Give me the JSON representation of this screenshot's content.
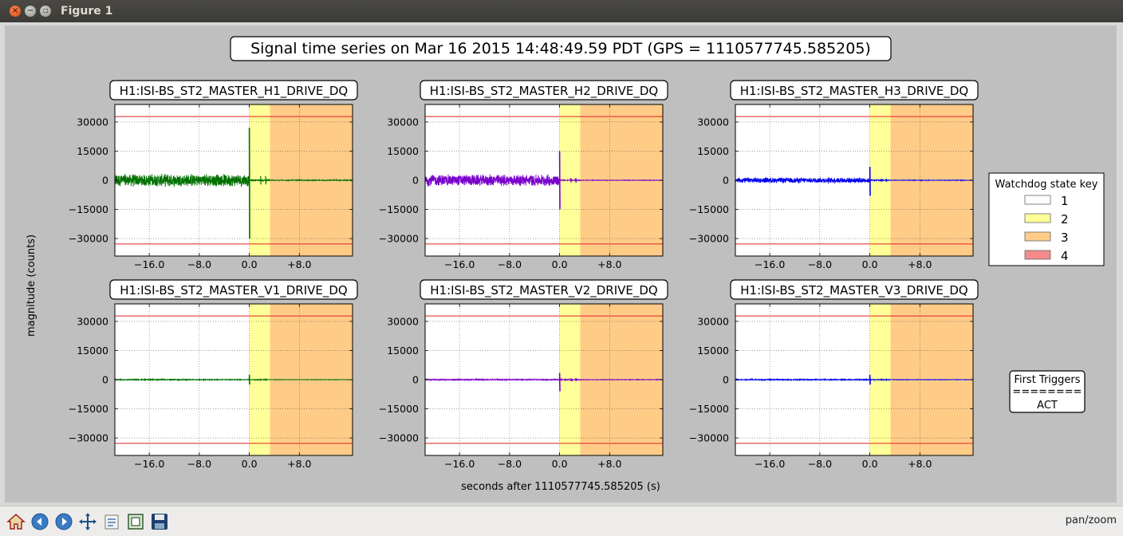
{
  "window": {
    "title": "Figure 1"
  },
  "figure": {
    "suptitle": "Signal time series on Mar 16 2015 14:48:49.59 PDT (GPS = 1110577745.585205)",
    "ylabel": "magnitude (counts)",
    "xlabel": "seconds after 1110577745.585205 (s)"
  },
  "legend": {
    "title": "Watchdog state key",
    "entries": [
      {
        "label": "1",
        "color": "#ffffff"
      },
      {
        "label": "2",
        "color": "#ffff99"
      },
      {
        "label": "3",
        "color": "#ffcc88"
      },
      {
        "label": "4",
        "color": "#f48a8a"
      }
    ]
  },
  "first_triggers": {
    "title": "First Triggers",
    "separator": "========",
    "value": "ACT"
  },
  "toolbar": {
    "buttons": [
      "home-icon",
      "back-icon",
      "forward-icon",
      "pan-icon",
      "configure-subplots-icon",
      "zoom-icon",
      "save-icon"
    ],
    "status": "pan/zoom"
  },
  "chart_data": [
    {
      "type": "line",
      "title": "H1:ISI-BS_ST2_MASTER_H1_DRIVE_DQ",
      "color": "#007000",
      "xlim": [
        -21.5,
        16.5
      ],
      "ylim": [
        -39000,
        39000
      ],
      "xticks": [
        -16.0,
        -8.0,
        0.0,
        8.0
      ],
      "xticklabels": [
        "−16.0",
        "−8.0",
        "0.0",
        "+8.0"
      ],
      "yticks": [
        30000,
        15000,
        0,
        -15000,
        -30000
      ],
      "yticklabels": [
        "30000",
        "15000",
        "0",
        "−15000",
        "−30000"
      ],
      "thresholds": [
        32767,
        -32767
      ],
      "state_spans": [
        {
          "state": 2,
          "from": 0.0,
          "to": 3.3
        },
        {
          "state": 3,
          "from": 3.3,
          "to": 16.5
        }
      ],
      "pre_amplitude": 3500,
      "spike_max": 27000,
      "spike_min": -30000,
      "post_amplitude": 300
    },
    {
      "type": "line",
      "title": "H1:ISI-BS_ST2_MASTER_H2_DRIVE_DQ",
      "color": "#7a00cc",
      "xlim": [
        -21.5,
        16.5
      ],
      "ylim": [
        -39000,
        39000
      ],
      "xticks": [
        -16.0,
        -8.0,
        0.0,
        8.0
      ],
      "xticklabels": [
        "−16.0",
        "−8.0",
        "0.0",
        "+8.0"
      ],
      "yticks": [
        30000,
        15000,
        0,
        -15000,
        -30000
      ],
      "yticklabels": [
        "30000",
        "15000",
        "0",
        "−15000",
        "−30000"
      ],
      "thresholds": [
        32767,
        -32767
      ],
      "state_spans": [
        {
          "state": 2,
          "from": 0.0,
          "to": 3.3
        },
        {
          "state": 3,
          "from": 3.3,
          "to": 16.5
        }
      ],
      "pre_amplitude": 3200,
      "spike_max": 15000,
      "spike_min": -15000,
      "post_amplitude": 200
    },
    {
      "type": "line",
      "title": "H1:ISI-BS_ST2_MASTER_H3_DRIVE_DQ",
      "color": "#0000ee",
      "xlim": [
        -21.5,
        16.5
      ],
      "ylim": [
        -39000,
        39000
      ],
      "xticks": [
        -16.0,
        -8.0,
        0.0,
        8.0
      ],
      "xticklabels": [
        "−16.0",
        "−8.0",
        "0.0",
        "+8.0"
      ],
      "yticks": [
        30000,
        15000,
        0,
        -15000,
        -30000
      ],
      "yticklabels": [
        "30000",
        "15000",
        "0",
        "−15000",
        "−30000"
      ],
      "thresholds": [
        32767,
        -32767
      ],
      "state_spans": [
        {
          "state": 2,
          "from": 0.0,
          "to": 3.3
        },
        {
          "state": 3,
          "from": 3.3,
          "to": 16.5
        }
      ],
      "pre_amplitude": 1500,
      "spike_max": 7000,
      "spike_min": -8000,
      "post_amplitude": 200
    },
    {
      "type": "line",
      "title": "H1:ISI-BS_ST2_MASTER_V1_DRIVE_DQ",
      "color": "#007000",
      "xlim": [
        -21.5,
        16.5
      ],
      "ylim": [
        -39000,
        39000
      ],
      "xticks": [
        -16.0,
        -8.0,
        0.0,
        8.0
      ],
      "xticklabels": [
        "−16.0",
        "−8.0",
        "0.0",
        "+8.0"
      ],
      "yticks": [
        30000,
        15000,
        0,
        -15000,
        -30000
      ],
      "yticklabels": [
        "30000",
        "15000",
        "0",
        "−15000",
        "−30000"
      ],
      "thresholds": [
        32767,
        -32767
      ],
      "state_spans": [
        {
          "state": 2,
          "from": 0.0,
          "to": 3.3
        },
        {
          "state": 3,
          "from": 3.3,
          "to": 16.5
        }
      ],
      "pre_amplitude": 250,
      "spike_max": 2500,
      "spike_min": -2500,
      "post_amplitude": 150
    },
    {
      "type": "line",
      "title": "H1:ISI-BS_ST2_MASTER_V2_DRIVE_DQ",
      "color": "#7a00cc",
      "xlim": [
        -21.5,
        16.5
      ],
      "ylim": [
        -39000,
        39000
      ],
      "xticks": [
        -16.0,
        -8.0,
        0.0,
        8.0
      ],
      "xticklabels": [
        "−16.0",
        "−8.0",
        "0.0",
        "+8.0"
      ],
      "yticks": [
        30000,
        15000,
        0,
        -15000,
        -30000
      ],
      "yticklabels": [
        "30000",
        "15000",
        "0",
        "−15000",
        "−30000"
      ],
      "thresholds": [
        32767,
        -32767
      ],
      "state_spans": [
        {
          "state": 2,
          "from": 0.0,
          "to": 3.3
        },
        {
          "state": 3,
          "from": 3.3,
          "to": 16.5
        }
      ],
      "pre_amplitude": 300,
      "spike_max": 3500,
      "spike_min": -6000,
      "post_amplitude": 200
    },
    {
      "type": "line",
      "title": "H1:ISI-BS_ST2_MASTER_V3_DRIVE_DQ",
      "color": "#0000ee",
      "xlim": [
        -21.5,
        16.5
      ],
      "ylim": [
        -39000,
        39000
      ],
      "xticks": [
        -16.0,
        -8.0,
        0.0,
        8.0
      ],
      "xticklabels": [
        "−16.0",
        "−8.0",
        "0.0",
        "+8.0"
      ],
      "yticks": [
        30000,
        15000,
        0,
        -15000,
        -30000
      ],
      "yticklabels": [
        "30000",
        "15000",
        "0",
        "−15000",
        "−30000"
      ],
      "thresholds": [
        32767,
        -32767
      ],
      "state_spans": [
        {
          "state": 2,
          "from": 0.0,
          "to": 3.3
        },
        {
          "state": 3,
          "from": 3.3,
          "to": 16.5
        }
      ],
      "pre_amplitude": 300,
      "spike_max": 2500,
      "spike_min": -2500,
      "post_amplitude": 150
    }
  ]
}
